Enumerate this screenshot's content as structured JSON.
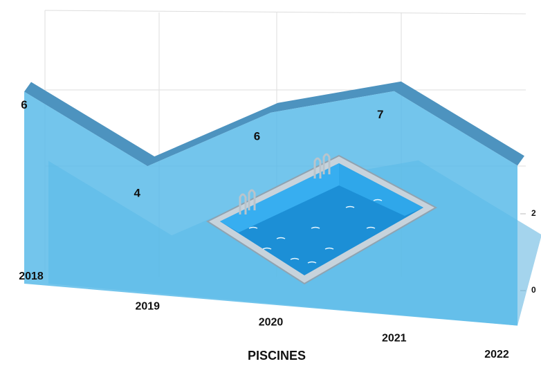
{
  "chart_data": {
    "type": "area",
    "title": "PISCINES",
    "categories": [
      "2018",
      "2019",
      "2020",
      "2021",
      "2022"
    ],
    "values": [
      6,
      4,
      6,
      7,
      5
    ],
    "value_labels": [
      "6",
      "4",
      "6",
      "7",
      null
    ],
    "color": "#5bbbe9",
    "ylim": [
      0,
      8
    ],
    "yticks": [
      0,
      2
    ]
  }
}
